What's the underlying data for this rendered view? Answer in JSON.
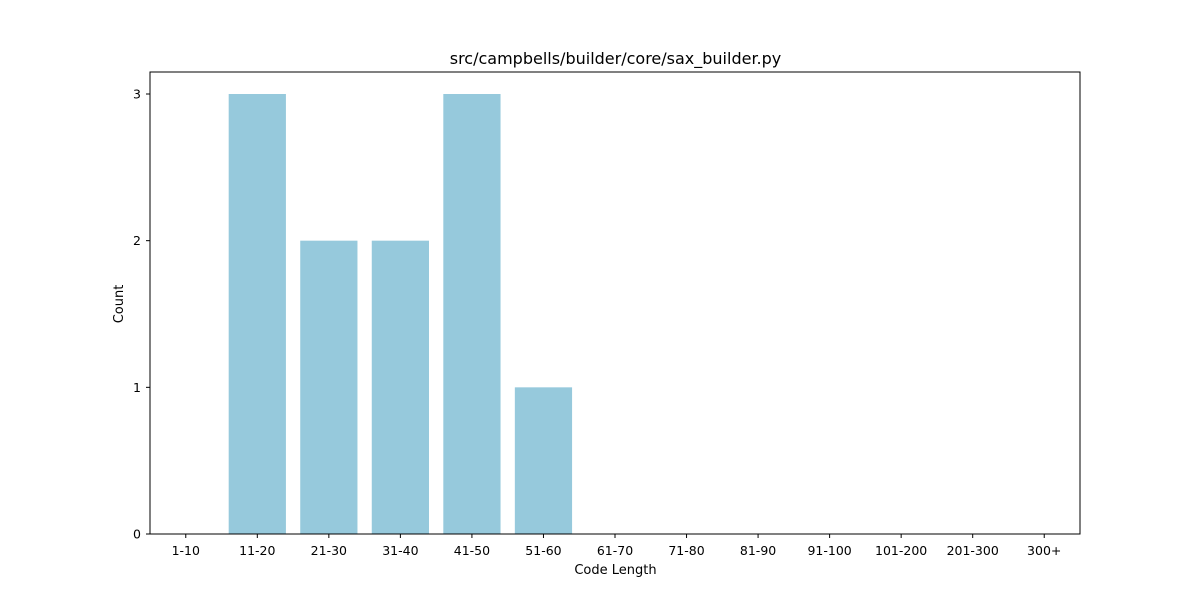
{
  "chart_data": {
    "type": "bar",
    "title": "src/campbells/builder/core/sax_builder.py",
    "xlabel": "Code Length",
    "ylabel": "Count",
    "categories": [
      "1-10",
      "11-20",
      "21-30",
      "31-40",
      "41-50",
      "51-60",
      "61-70",
      "71-80",
      "81-90",
      "91-100",
      "101-200",
      "201-300",
      "300+"
    ],
    "values": [
      0,
      3,
      2,
      2,
      3,
      1,
      0,
      0,
      0,
      0,
      0,
      0,
      0
    ],
    "yticks": [
      "0",
      "1",
      "2",
      "3"
    ],
    "ylim": [
      0,
      3.15
    ],
    "grid": false,
    "legend": "none",
    "colors": {
      "bar": "#96c9dc",
      "axis": "#000000",
      "background": "#ffffff"
    }
  }
}
